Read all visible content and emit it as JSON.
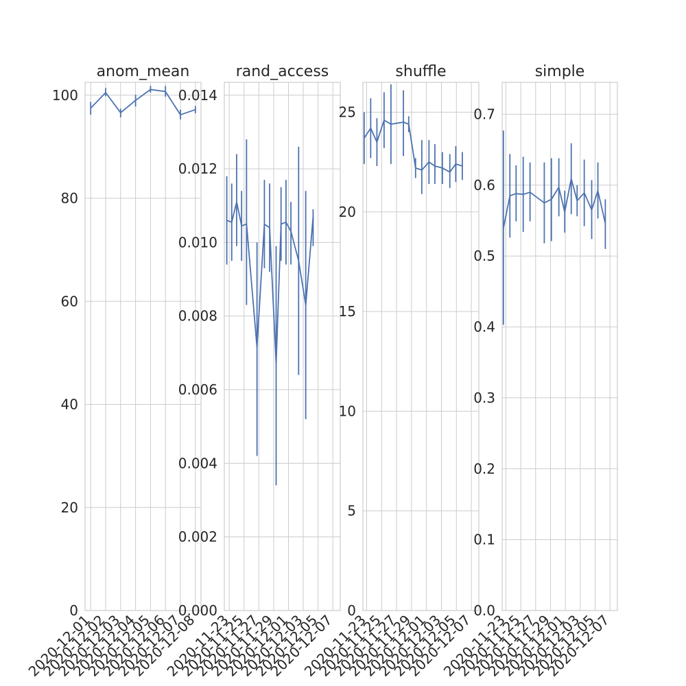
{
  "chart_data": [
    {
      "type": "line",
      "title": "anom_mean",
      "ylim": [
        0,
        102.5
      ],
      "yticks": [
        0,
        20,
        40,
        60,
        80,
        100
      ],
      "ytick_labels": [
        "0",
        "20",
        "40",
        "60",
        "80",
        "100"
      ],
      "xlim": [
        "2020-11-30T15:00",
        "2020-12-08T09:00"
      ],
      "xticks": [
        "2020-12-01",
        "2020-12-02",
        "2020-12-03",
        "2020-12-04",
        "2020-12-05",
        "2020-12-06",
        "2020-12-07",
        "2020-12-08"
      ],
      "grid": true,
      "points": [
        {
          "x": "2020-12-01T00:00",
          "y": 97.5,
          "lo": 96.2,
          "hi": 98.7
        },
        {
          "x": "2020-12-02T00:00",
          "y": 100.5,
          "lo": 99.8,
          "hi": 101.4
        },
        {
          "x": "2020-12-03T00:00",
          "y": 96.6,
          "lo": 95.7,
          "hi": 97.4
        },
        {
          "x": "2020-12-04T00:00",
          "y": 99.0,
          "lo": 97.8,
          "hi": 100.1
        },
        {
          "x": "2020-12-05T00:00",
          "y": 101.1,
          "lo": 100.5,
          "hi": 101.8
        },
        {
          "x": "2020-12-06T00:00",
          "y": 100.7,
          "lo": 99.7,
          "hi": 101.8
        },
        {
          "x": "2020-12-07T00:00",
          "y": 96.2,
          "lo": 95.3,
          "hi": 97.2
        },
        {
          "x": "2020-12-08T00:00",
          "y": 97.2,
          "lo": 96.5,
          "hi": 97.9
        }
      ]
    },
    {
      "type": "line",
      "title": "rand_access",
      "ylim": [
        0,
        0.01435
      ],
      "yticks": [
        0,
        0.002,
        0.004,
        0.006,
        0.008,
        0.01,
        0.012,
        0.014
      ],
      "ytick_labels": [
        "0.000",
        "0.002",
        "0.004",
        "0.006",
        "0.008",
        "0.010",
        "0.012",
        "0.014"
      ],
      "xlim": [
        "2020-11-22T08:00",
        "2020-12-08T00:00"
      ],
      "xticks": [
        "2020-11-23",
        "2020-11-25",
        "2020-11-27",
        "2020-11-29",
        "2020-12-01",
        "2020-12-03",
        "2020-12-05",
        "2020-12-07"
      ],
      "grid": true,
      "points": [
        {
          "x": "2020-11-22T16:00",
          "y": 0.0106,
          "lo": 0.0094,
          "hi": 0.0118
        },
        {
          "x": "2020-11-23T08:00",
          "y": 0.01055,
          "lo": 0.0095,
          "hi": 0.0116
        },
        {
          "x": "2020-11-24T00:00",
          "y": 0.0111,
          "lo": 0.0099,
          "hi": 0.0124
        },
        {
          "x": "2020-11-24T16:00",
          "y": 0.01045,
          "lo": 0.0095,
          "hi": 0.0114
        },
        {
          "x": "2020-11-25T08:00",
          "y": 0.0105,
          "lo": 0.0083,
          "hi": 0.0128
        },
        {
          "x": "2020-11-26T18:00",
          "y": 0.00715,
          "lo": 0.0042,
          "hi": 0.01
        },
        {
          "x": "2020-11-27T18:00",
          "y": 0.0105,
          "lo": 0.0093,
          "hi": 0.0117
        },
        {
          "x": "2020-11-28T11:00",
          "y": 0.0104,
          "lo": 0.0092,
          "hi": 0.0116
        },
        {
          "x": "2020-11-29T08:00",
          "y": 0.0067,
          "lo": 0.0034,
          "hi": 0.0099
        },
        {
          "x": "2020-11-30T00:00",
          "y": 0.0105,
          "lo": 0.0095,
          "hi": 0.0115
        },
        {
          "x": "2020-11-30T16:00",
          "y": 0.01055,
          "lo": 0.0094,
          "hi": 0.0117
        },
        {
          "x": "2020-12-01T08:00",
          "y": 0.0103,
          "lo": 0.0094,
          "hi": 0.0111
        },
        {
          "x": "2020-12-02T09:00",
          "y": 0.0095,
          "lo": 0.0064,
          "hi": 0.0126
        },
        {
          "x": "2020-12-03T08:00",
          "y": 0.0083,
          "lo": 0.0052,
          "hi": 0.0114
        },
        {
          "x": "2020-12-04T08:00",
          "y": 0.0107,
          "lo": 0.0099,
          "hi": 0.0109
        }
      ]
    },
    {
      "type": "line",
      "title": "shuffle",
      "ylim": [
        0,
        26.5
      ],
      "yticks": [
        0,
        5,
        10,
        15,
        20,
        25
      ],
      "ytick_labels": [
        "0",
        "5",
        "10",
        "15",
        "20",
        "25"
      ],
      "xlim": [
        "2020-11-22T12:00",
        "2020-12-08T00:00"
      ],
      "xticks": [
        "2020-11-23",
        "2020-11-25",
        "2020-11-27",
        "2020-11-29",
        "2020-12-01",
        "2020-12-03",
        "2020-12-05",
        "2020-12-07"
      ],
      "grid": true,
      "points": [
        {
          "x": "2020-11-22T16:00",
          "y": 23.7,
          "lo": 22.4,
          "hi": 25.0
        },
        {
          "x": "2020-11-23T13:00",
          "y": 24.2,
          "lo": 22.7,
          "hi": 25.7
        },
        {
          "x": "2020-11-24T09:00",
          "y": 23.5,
          "lo": 22.3,
          "hi": 24.7
        },
        {
          "x": "2020-11-25T08:00",
          "y": 24.6,
          "lo": 23.2,
          "hi": 26.0
        },
        {
          "x": "2020-11-26T06:00",
          "y": 24.4,
          "lo": 22.4,
          "hi": 26.4
        },
        {
          "x": "2020-11-27T22:00",
          "y": 24.5,
          "lo": 22.8,
          "hi": 26.1
        },
        {
          "x": "2020-11-28T15:00",
          "y": 24.4,
          "lo": 24.0,
          "hi": 24.8
        },
        {
          "x": "2020-11-29T13:00",
          "y": 22.2,
          "lo": 21.7,
          "hi": 22.7
        },
        {
          "x": "2020-11-30T09:00",
          "y": 22.1,
          "lo": 20.9,
          "hi": 23.6
        },
        {
          "x": "2020-12-01T08:00",
          "y": 22.5,
          "lo": 21.4,
          "hi": 23.6
        },
        {
          "x": "2020-12-02T03:00",
          "y": 22.3,
          "lo": 21.4,
          "hi": 23.4
        },
        {
          "x": "2020-12-03T03:00",
          "y": 22.2,
          "lo": 21.4,
          "hi": 23.0
        },
        {
          "x": "2020-12-04T03:00",
          "y": 22.0,
          "lo": 21.2,
          "hi": 22.9
        },
        {
          "x": "2020-12-04T22:00",
          "y": 22.4,
          "lo": 21.5,
          "hi": 23.3
        },
        {
          "x": "2020-12-05T19:00",
          "y": 22.3,
          "lo": 21.6,
          "hi": 23.0
        }
      ]
    },
    {
      "type": "line",
      "title": "simple",
      "ylim": [
        0,
        0.745
      ],
      "yticks": [
        0,
        0.1,
        0.2,
        0.3,
        0.4,
        0.5,
        0.6,
        0.7
      ],
      "ytick_labels": [
        "0.0",
        "0.1",
        "0.2",
        "0.3",
        "0.4",
        "0.5",
        "0.6",
        "0.7"
      ],
      "xlim": [
        "2020-11-22T12:00",
        "2020-12-08T00:00"
      ],
      "xticks": [
        "2020-11-23",
        "2020-11-25",
        "2020-11-27",
        "2020-11-29",
        "2020-12-01",
        "2020-12-03",
        "2020-12-05",
        "2020-12-07"
      ],
      "grid": true,
      "points": [
        {
          "x": "2020-11-22T16:00",
          "y": 0.539,
          "lo": 0.403,
          "hi": 0.677
        },
        {
          "x": "2020-11-23T13:00",
          "y": 0.585,
          "lo": 0.526,
          "hi": 0.644
        },
        {
          "x": "2020-11-24T09:00",
          "y": 0.588,
          "lo": 0.549,
          "hi": 0.628
        },
        {
          "x": "2020-11-25T08:00",
          "y": 0.587,
          "lo": 0.534,
          "hi": 0.64
        },
        {
          "x": "2020-11-26T06:00",
          "y": 0.59,
          "lo": 0.549,
          "hi": 0.632
        },
        {
          "x": "2020-11-28T04:00",
          "y": 0.575,
          "lo": 0.518,
          "hi": 0.632
        },
        {
          "x": "2020-11-29T03:00",
          "y": 0.58,
          "lo": 0.521,
          "hi": 0.638
        },
        {
          "x": "2020-11-30T03:00",
          "y": 0.597,
          "lo": 0.556,
          "hi": 0.638
        },
        {
          "x": "2020-11-30T22:00",
          "y": 0.562,
          "lo": 0.533,
          "hi": 0.592
        },
        {
          "x": "2020-12-01T19:00",
          "y": 0.609,
          "lo": 0.559,
          "hi": 0.659
        },
        {
          "x": "2020-12-02T14:00",
          "y": 0.578,
          "lo": 0.556,
          "hi": 0.6
        },
        {
          "x": "2020-12-03T13:00",
          "y": 0.589,
          "lo": 0.542,
          "hi": 0.636
        },
        {
          "x": "2020-12-04T13:00",
          "y": 0.565,
          "lo": 0.524,
          "hi": 0.607
        },
        {
          "x": "2020-12-05T09:00",
          "y": 0.592,
          "lo": 0.553,
          "hi": 0.632
        },
        {
          "x": "2020-12-06T09:00",
          "y": 0.546,
          "lo": 0.51,
          "hi": 0.58
        }
      ]
    }
  ],
  "colors": {
    "series": "#4c72b0",
    "grid": "#cccccc",
    "text": "#262626"
  }
}
